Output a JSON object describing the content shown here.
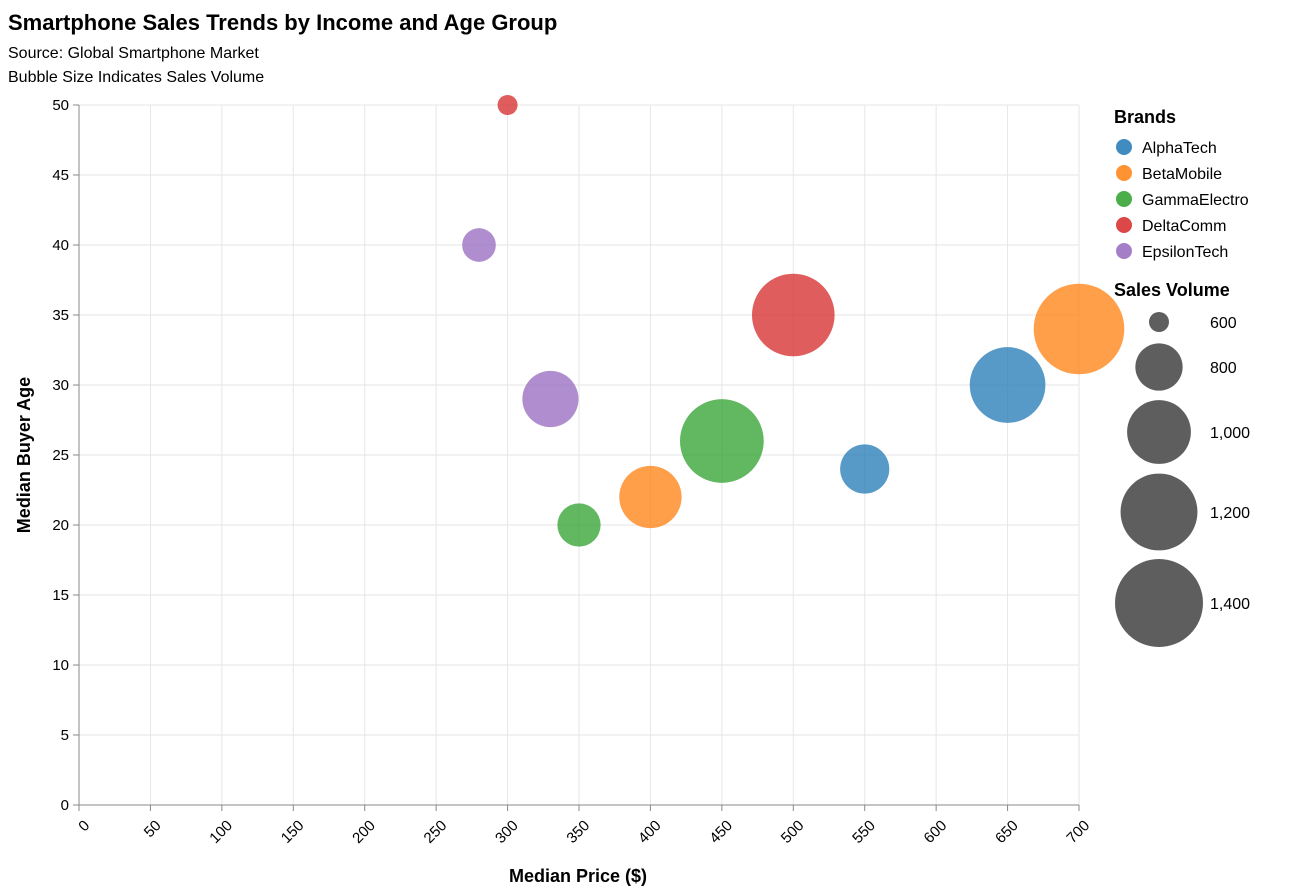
{
  "chart_data": {
    "type": "scatter",
    "title": "Smartphone Sales Trends by Income and Age Group",
    "subtitle": [
      "Source: Global Smartphone Market",
      "Bubble Size Indicates Sales Volume"
    ],
    "xlabel": "Median Price ($)",
    "ylabel": "Median Buyer Age",
    "xlim": [
      0,
      700
    ],
    "ylim": [
      0,
      50
    ],
    "x_ticks": [
      0,
      50,
      100,
      150,
      200,
      250,
      300,
      350,
      400,
      450,
      500,
      550,
      600,
      650,
      700
    ],
    "x_tick_labels": [
      "0",
      "50",
      "100",
      "150",
      "200",
      "250",
      "300",
      "350",
      "400",
      "450",
      "500",
      "550",
      "600",
      "650",
      "700"
    ],
    "y_ticks": [
      0,
      5,
      10,
      15,
      20,
      25,
      30,
      35,
      40,
      45,
      50
    ],
    "y_tick_labels": [
      "0",
      "5",
      "10",
      "15",
      "20",
      "25",
      "30",
      "35",
      "40",
      "45",
      "50"
    ],
    "grid": true,
    "legend": {
      "placement": "right",
      "color_title": "Brands",
      "size_title": "Sales Volume",
      "size_values": [
        600,
        800,
        1000,
        1200,
        1400
      ],
      "size_labels": [
        "600",
        "800",
        "1,000",
        "1,200",
        "1,400"
      ]
    },
    "series": [
      {
        "name": "AlphaTech",
        "color": "#1f77b4",
        "points": [
          {
            "x": 550,
            "y": 24,
            "size": 820
          },
          {
            "x": 650,
            "y": 30,
            "size": 1180
          }
        ]
      },
      {
        "name": "BetaMobile",
        "color": "#ff7f0e",
        "points": [
          {
            "x": 400,
            "y": 22,
            "size": 980
          },
          {
            "x": 700,
            "y": 34,
            "size": 1450
          }
        ]
      },
      {
        "name": "GammaElectro",
        "color": "#2ca02c",
        "points": [
          {
            "x": 350,
            "y": 20,
            "size": 760
          },
          {
            "x": 450,
            "y": 26,
            "size": 1320
          }
        ]
      },
      {
        "name": "DeltaComm",
        "color": "#d62728",
        "points": [
          {
            "x": 300,
            "y": 50,
            "size": 600
          },
          {
            "x": 500,
            "y": 35,
            "size": 1300
          }
        ]
      },
      {
        "name": "EpsilonTech",
        "color": "#9467bd",
        "points": [
          {
            "x": 280,
            "y": 40,
            "size": 680
          },
          {
            "x": 330,
            "y": 29,
            "size": 900
          }
        ]
      }
    ]
  }
}
